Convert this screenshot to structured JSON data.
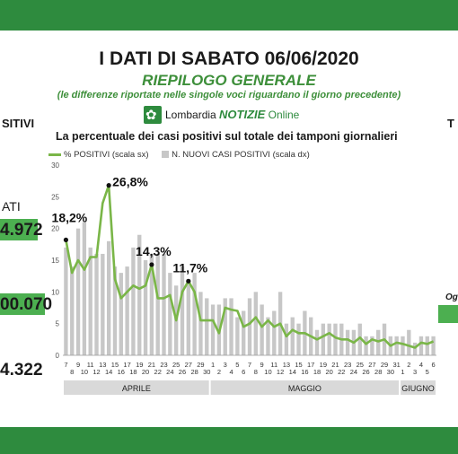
{
  "header": {
    "title": "I DATI DI SABATO 06/06/2020",
    "subtitle": "RIEPILOGO GENERALE",
    "note": "(le differenze riportate nelle singole voci riguardano il giorno precedente)"
  },
  "logo": {
    "name_plain": "Lombardia",
    "name_bold": "NOTIZIE",
    "name_tail": "Online"
  },
  "side_fragments": {
    "left_header": "SITIVI",
    "left_label": "ATI",
    "left_value_1": "4.972",
    "left_value_2": "00.070",
    "left_value_3": "4.322",
    "right_header": "T",
    "right_label": "Og"
  },
  "colors": {
    "line": "#7ab648",
    "bars": "#c7c7c7",
    "brand": "#2e8b3e",
    "month_band": "#d9d9d9"
  },
  "chart_data": {
    "type": "bar+line",
    "title": "La percentuale dei casi positivi sul totale dei tamponi giornalieri",
    "legend": [
      "% POSITIVI (scala sx)",
      "N. NUOVI CASI POSITIVI (scala dx)"
    ],
    "legend_position": "top-left",
    "grid": false,
    "y_left": {
      "range": [
        0,
        30
      ],
      "ticks": [
        "0",
        "5",
        "10",
        "15",
        "20",
        "25",
        "30"
      ]
    },
    "x_tick_labels": [
      "7",
      "8",
      "9",
      "10",
      "11",
      "12",
      "13",
      "14",
      "15",
      "16",
      "17",
      "18",
      "19",
      "20",
      "21",
      "22",
      "23",
      "24",
      "25",
      "26",
      "27",
      "28",
      "29",
      "30",
      "1",
      "2",
      "3",
      "4",
      "5",
      "6",
      "7",
      "8",
      "9",
      "10",
      "11",
      "12",
      "13",
      "14",
      "15",
      "16",
      "17",
      "18",
      "19",
      "20",
      "21",
      "22",
      "23",
      "24",
      "25",
      "26",
      "27",
      "28",
      "29",
      "30",
      "31",
      "1",
      "2",
      "3",
      "4",
      "5",
      "6"
    ],
    "months": [
      "APRILE",
      "MAGGIO",
      "GIUGNO"
    ],
    "series": [
      {
        "name": "% POSITIVI (scala sx)",
        "kind": "line",
        "values": [
          18.2,
          13,
          15,
          13.5,
          15.5,
          15.5,
          24,
          26.8,
          12,
          9,
          10,
          11,
          10.5,
          11,
          14.3,
          9,
          9,
          9.5,
          5.5,
          10,
          11.7,
          10,
          5.5,
          5.5,
          5.5,
          3.5,
          7.5,
          7.2,
          7,
          4.5,
          5,
          6,
          4.5,
          5.5,
          4.5,
          5,
          3,
          4,
          3.5,
          3.5,
          3,
          2.5,
          3,
          3.5,
          2.8,
          2.5,
          2.5,
          2,
          2.8,
          1.8,
          2.5,
          2.2,
          2.5,
          1.5,
          2,
          1.8,
          1.5,
          1.2,
          2,
          1.8,
          2.2
        ],
        "labels": [
          {
            "index": 0,
            "text": "18,2%"
          },
          {
            "index": 7,
            "text": "26,8%"
          },
          {
            "index": 14,
            "text": "14,3%"
          },
          {
            "index": 20,
            "text": "11,7%"
          }
        ]
      },
      {
        "name": "N. NUOVI CASI POSITIVI (scala dx)",
        "kind": "bar",
        "values": [
          17,
          14,
          20,
          21,
          17,
          16,
          16,
          18,
          14,
          13,
          14,
          17,
          19,
          15,
          16,
          16,
          16,
          13,
          11,
          14,
          12,
          13,
          10,
          9,
          8,
          8,
          9,
          9,
          6,
          7,
          9,
          10,
          8,
          6,
          7,
          10,
          5,
          6,
          5,
          7,
          6,
          4,
          5,
          5,
          5,
          5,
          4,
          4,
          5,
          3,
          3,
          4,
          5,
          3,
          3,
          3,
          4,
          2,
          3,
          3,
          3
        ]
      }
    ]
  }
}
